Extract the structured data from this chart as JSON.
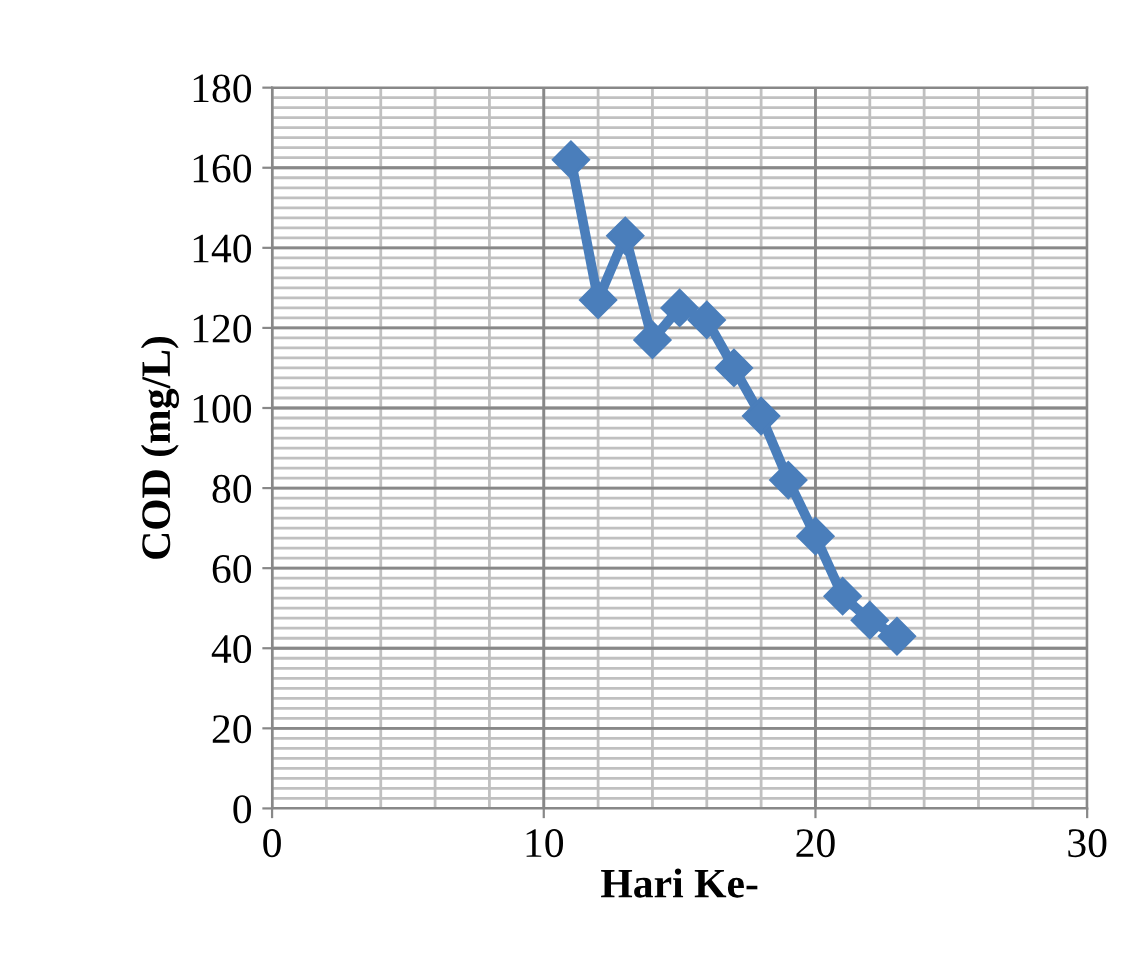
{
  "chart_data": {
    "type": "line",
    "xlabel": "Hari Ke-",
    "ylabel": "COD (mg/L)",
    "x": [
      11,
      12,
      13,
      14,
      15,
      16,
      17,
      18,
      19,
      20,
      21,
      22,
      23
    ],
    "series": [
      {
        "color": "#4a7ebb",
        "values": [
          162,
          127,
          143,
          117,
          125,
          122,
          110,
          98,
          82,
          68,
          53,
          47,
          43
        ]
      }
    ],
    "xlim": [
      0,
      30
    ],
    "xticks": [
      0,
      10,
      20,
      30
    ],
    "ylim": [
      0,
      180
    ],
    "yticks": [
      0,
      20,
      40,
      60,
      80,
      100,
      120,
      140,
      160,
      180
    ],
    "grid": true,
    "marker": "diamond",
    "line_style": "solid"
  }
}
